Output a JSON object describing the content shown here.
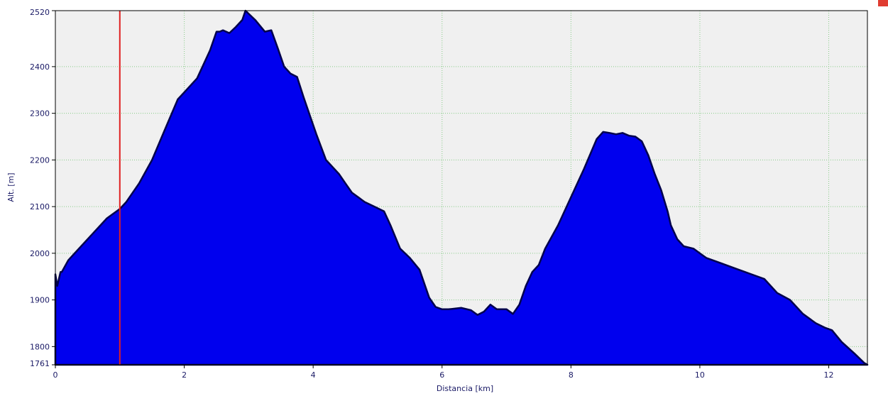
{
  "chart_data": {
    "type": "area",
    "xlabel": "Distancia [km]",
    "ylabel": "Alt. [m]",
    "xlim": [
      0,
      12.6
    ],
    "ylim": [
      1761,
      2520
    ],
    "x_ticks": [
      0,
      2,
      4,
      6,
      8,
      10,
      12
    ],
    "y_ticks": [
      1761,
      1800,
      1900,
      2000,
      2100,
      2200,
      2300,
      2400,
      2520
    ],
    "grid": true,
    "colors": {
      "fill": "#0000ee",
      "stroke": "#00004d",
      "marker": "#e02020",
      "plot_bg": "#f0f0f0",
      "grid": "#88cc88"
    },
    "marker_x": 1.0,
    "series": [
      {
        "x": [
          0,
          0.03,
          0.08,
          0.1,
          0.2,
          0.3,
          0.5,
          0.7,
          0.8,
          1.0,
          1.1,
          1.3,
          1.5,
          1.7,
          1.9,
          2.0,
          2.2,
          2.4,
          2.5,
          2.55,
          2.6,
          2.7,
          2.8,
          2.9,
          2.95,
          3.1,
          3.25,
          3.35,
          3.45,
          3.55,
          3.65,
          3.75,
          3.85,
          3.95,
          4.05,
          4.2,
          4.3,
          4.4,
          4.5,
          4.6,
          4.8,
          4.95,
          5.1,
          5.2,
          5.35,
          5.5,
          5.65,
          5.8,
          5.9,
          6.0,
          6.1,
          6.3,
          6.45,
          6.55,
          6.65,
          6.75,
          6.85,
          7.0,
          7.1,
          7.2,
          7.3,
          7.4,
          7.5,
          7.6,
          7.7,
          7.8,
          8.0,
          8.2,
          8.4,
          8.5,
          8.6,
          8.7,
          8.8,
          8.9,
          9.0,
          9.1,
          9.2,
          9.3,
          9.4,
          9.5,
          9.55,
          9.65,
          9.75,
          9.9,
          10.0,
          10.1,
          10.2,
          10.4,
          10.6,
          10.8,
          11.0,
          11.2,
          11.4,
          11.6,
          11.8,
          11.95,
          12.05,
          12.2,
          12.4,
          12.55,
          12.6
        ],
        "y": [
          1955,
          1930,
          1960,
          1960,
          1985,
          2000,
          2030,
          2060,
          2075,
          2095,
          2110,
          2150,
          2200,
          2265,
          2330,
          2345,
          2375,
          2435,
          2475,
          2475,
          2478,
          2472,
          2485,
          2500,
          2520,
          2500,
          2475,
          2478,
          2440,
          2400,
          2385,
          2378,
          2335,
          2295,
          2255,
          2200,
          2185,
          2170,
          2150,
          2130,
          2110,
          2100,
          2090,
          2060,
          2010,
          1990,
          1965,
          1905,
          1885,
          1880,
          1880,
          1883,
          1878,
          1868,
          1875,
          1890,
          1880,
          1880,
          1870,
          1890,
          1930,
          1960,
          1975,
          2010,
          2035,
          2060,
          2120,
          2180,
          2245,
          2260,
          2258,
          2255,
          2258,
          2252,
          2250,
          2240,
          2210,
          2170,
          2135,
          2090,
          2060,
          2030,
          2015,
          2010,
          2000,
          1990,
          1985,
          1975,
          1965,
          1955,
          1945,
          1915,
          1900,
          1870,
          1850,
          1840,
          1835,
          1810,
          1785,
          1765,
          1761
        ]
      }
    ]
  }
}
